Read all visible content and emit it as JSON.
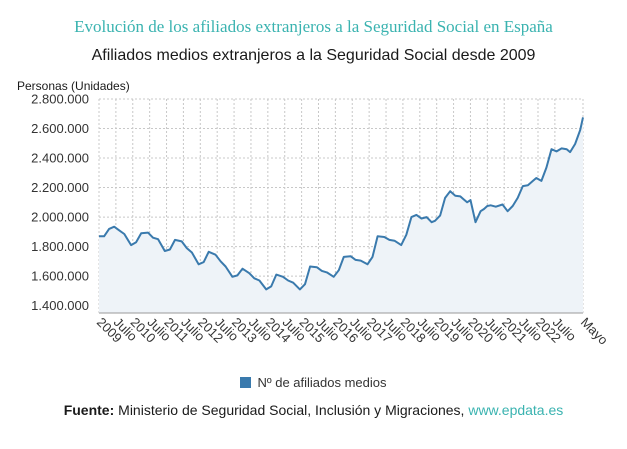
{
  "header": {
    "title": "Evolución de los afiliados extranjeros a la Seguridad Social en España",
    "subtitle": "Afiliados medios extranjeros a la Seguridad Social desde 2009"
  },
  "footer": {
    "source_label": "Fuente:",
    "source_text": " Ministerio de Seguridad Social, Inclusión y Migraciones, ",
    "source_site": "www.epdata.es"
  },
  "colors": {
    "line": "#3a7aad",
    "area": "#eef3f8",
    "title": "#3ab3b0"
  },
  "chart_data": {
    "type": "area",
    "ylabel": "Personas (Unidades)",
    "xlim": [
      2009.0,
      2023.333
    ],
    "ylim": [
      1350000,
      2800000
    ],
    "yticks": [
      1400000,
      1600000,
      1800000,
      2000000,
      2200000,
      2400000,
      2600000,
      2800000
    ],
    "ytick_labels": [
      "1.400.000",
      "1.600.000",
      "1.800.000",
      "2.000.000",
      "2.200.000",
      "2.400.000",
      "2.600.000",
      "2.800.000"
    ],
    "xticks": [
      {
        "x": 2009.0,
        "label": "2009"
      },
      {
        "x": 2009.5,
        "label": "Julio"
      },
      {
        "x": 2010.0,
        "label": "2010"
      },
      {
        "x": 2010.5,
        "label": "Julio"
      },
      {
        "x": 2011.0,
        "label": "2011"
      },
      {
        "x": 2011.5,
        "label": "Julio"
      },
      {
        "x": 2012.0,
        "label": "2012"
      },
      {
        "x": 2012.5,
        "label": "Julio"
      },
      {
        "x": 2013.0,
        "label": "2013"
      },
      {
        "x": 2013.5,
        "label": "Julio"
      },
      {
        "x": 2014.0,
        "label": "2014"
      },
      {
        "x": 2014.5,
        "label": "Julio"
      },
      {
        "x": 2015.0,
        "label": "2015"
      },
      {
        "x": 2015.5,
        "label": "Julio"
      },
      {
        "x": 2016.0,
        "label": "2016"
      },
      {
        "x": 2016.5,
        "label": "Julio"
      },
      {
        "x": 2017.0,
        "label": "2017"
      },
      {
        "x": 2017.5,
        "label": "Julio"
      },
      {
        "x": 2018.0,
        "label": "2018"
      },
      {
        "x": 2018.5,
        "label": "Julio"
      },
      {
        "x": 2019.0,
        "label": "2019"
      },
      {
        "x": 2019.5,
        "label": "Julio"
      },
      {
        "x": 2020.0,
        "label": "2020"
      },
      {
        "x": 2020.5,
        "label": "Julio"
      },
      {
        "x": 2021.0,
        "label": "2021"
      },
      {
        "x": 2021.5,
        "label": "Julio"
      },
      {
        "x": 2022.0,
        "label": "2022"
      },
      {
        "x": 2022.5,
        "label": "Julio"
      },
      {
        "x": 2023.333,
        "label": "Mayo"
      }
    ],
    "grid": true,
    "legend": "bottom-center",
    "series": [
      {
        "name": "Nº de afiliados medios",
        "x": [
          2009.0,
          2009.15,
          2009.3,
          2009.45,
          2009.6,
          2009.75,
          2009.95,
          2010.1,
          2010.25,
          2010.45,
          2010.6,
          2010.75,
          2010.95,
          2011.1,
          2011.25,
          2011.45,
          2011.6,
          2011.75,
          2011.95,
          2012.1,
          2012.25,
          2012.45,
          2012.6,
          2012.75,
          2012.95,
          2013.1,
          2013.25,
          2013.45,
          2013.6,
          2013.75,
          2013.95,
          2014.1,
          2014.25,
          2014.45,
          2014.6,
          2014.75,
          2014.95,
          2015.1,
          2015.25,
          2015.45,
          2015.6,
          2015.75,
          2015.95,
          2016.1,
          2016.25,
          2016.45,
          2016.6,
          2016.75,
          2016.95,
          2017.1,
          2017.25,
          2017.45,
          2017.6,
          2017.75,
          2017.95,
          2018.1,
          2018.25,
          2018.4,
          2018.55,
          2018.7,
          2018.85,
          2018.95,
          2019.1,
          2019.25,
          2019.4,
          2019.55,
          2019.7,
          2019.8,
          2019.9,
          2020.0,
          2020.15,
          2020.3,
          2020.4,
          2020.5,
          2020.6,
          2020.75,
          2020.95,
          2021.1,
          2021.25,
          2021.4,
          2021.55,
          2021.7,
          2021.85,
          2021.95,
          2022.1,
          2022.25,
          2022.4,
          2022.55,
          2022.7,
          2022.85,
          2022.95,
          2023.1,
          2023.25,
          2023.333
        ],
        "values": [
          1870000,
          1870000,
          1920000,
          1935000,
          1910000,
          1885000,
          1810000,
          1830000,
          1890000,
          1895000,
          1860000,
          1850000,
          1770000,
          1780000,
          1845000,
          1835000,
          1790000,
          1760000,
          1680000,
          1695000,
          1765000,
          1745000,
          1700000,
          1665000,
          1595000,
          1605000,
          1650000,
          1620000,
          1585000,
          1570000,
          1510000,
          1530000,
          1610000,
          1595000,
          1570000,
          1555000,
          1510000,
          1545000,
          1665000,
          1660000,
          1635000,
          1625000,
          1595000,
          1640000,
          1730000,
          1735000,
          1710000,
          1705000,
          1680000,
          1730000,
          1870000,
          1865000,
          1845000,
          1840000,
          1810000,
          1880000,
          2000000,
          2015000,
          1990000,
          2000000,
          1965000,
          1975000,
          2010000,
          2130000,
          2175000,
          2145000,
          2140000,
          2120000,
          2100000,
          2115000,
          1965000,
          2040000,
          2055000,
          2075000,
          2080000,
          2070000,
          2085000,
          2040000,
          2075000,
          2130000,
          2210000,
          2215000,
          2245000,
          2265000,
          2245000,
          2335000,
          2460000,
          2445000,
          2465000,
          2460000,
          2440000,
          2495000,
          2590000,
          2675000
        ]
      }
    ]
  }
}
